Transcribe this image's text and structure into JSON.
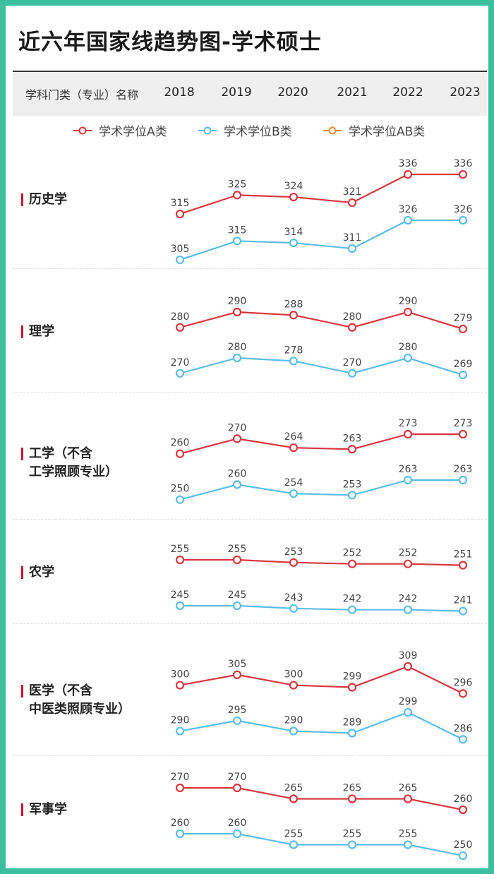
{
  "title": "近六年国家线趋势图-学术硕士",
  "header": {
    "label": "学科门类（专业）名称"
  },
  "colors": {
    "a": "#d9363e",
    "b": "#5bbde4",
    "ab": "#f08a2e"
  },
  "chart_data": {
    "type": "line",
    "title": "近六年国家线趋势图-学术硕士",
    "categories": [
      "2018",
      "2019",
      "2020",
      "2021",
      "2022",
      "2023"
    ],
    "legend": [
      {
        "name": "学术学位A类",
        "color": "#d9363e"
      },
      {
        "name": "学术学位B类",
        "color": "#5bbde4"
      },
      {
        "name": "学术学位AB类",
        "color": "#f08a2e"
      }
    ],
    "legend_position": "top",
    "grid": false,
    "rows": [
      {
        "label_lines": [
          "历史学"
        ],
        "series": [
          {
            "name": "学术学位A类",
            "values": [
              315,
              325,
              324,
              321,
              336,
              336
            ]
          },
          {
            "name": "学术学位B类",
            "values": [
              305,
              315,
              314,
              311,
              326,
              326
            ]
          }
        ]
      },
      {
        "label_lines": [
          "理学"
        ],
        "series": [
          {
            "name": "学术学位A类",
            "values": [
              280,
              290,
              288,
              280,
              290,
              279
            ]
          },
          {
            "name": "学术学位B类",
            "values": [
              270,
              280,
              278,
              270,
              280,
              269
            ]
          }
        ]
      },
      {
        "label_lines": [
          "工学（不含",
          "工学照顾专业）"
        ],
        "series": [
          {
            "name": "学术学位A类",
            "values": [
              260,
              270,
              264,
              263,
              273,
              273
            ]
          },
          {
            "name": "学术学位B类",
            "values": [
              250,
              260,
              254,
              253,
              263,
              263
            ]
          }
        ]
      },
      {
        "label_lines": [
          "农学"
        ],
        "series": [
          {
            "name": "学术学位A类",
            "values": [
              255,
              255,
              253,
              252,
              252,
              251
            ]
          },
          {
            "name": "学术学位B类",
            "values": [
              245,
              245,
              243,
              242,
              242,
              241
            ]
          }
        ]
      },
      {
        "label_lines": [
          "医学（不含",
          "中医类照顾专业）"
        ],
        "series": [
          {
            "name": "学术学位A类",
            "values": [
              300,
              305,
              300,
              299,
              309,
              296
            ]
          },
          {
            "name": "学术学位B类",
            "values": [
              290,
              295,
              290,
              289,
              299,
              286
            ]
          }
        ]
      },
      {
        "label_lines": [
          "军事学"
        ],
        "series": [
          {
            "name": "学术学位A类",
            "values": [
              270,
              270,
              265,
              265,
              265,
              260
            ]
          },
          {
            "name": "学术学位B类",
            "values": [
              260,
              260,
              255,
              255,
              255,
              250
            ]
          }
        ]
      }
    ]
  }
}
